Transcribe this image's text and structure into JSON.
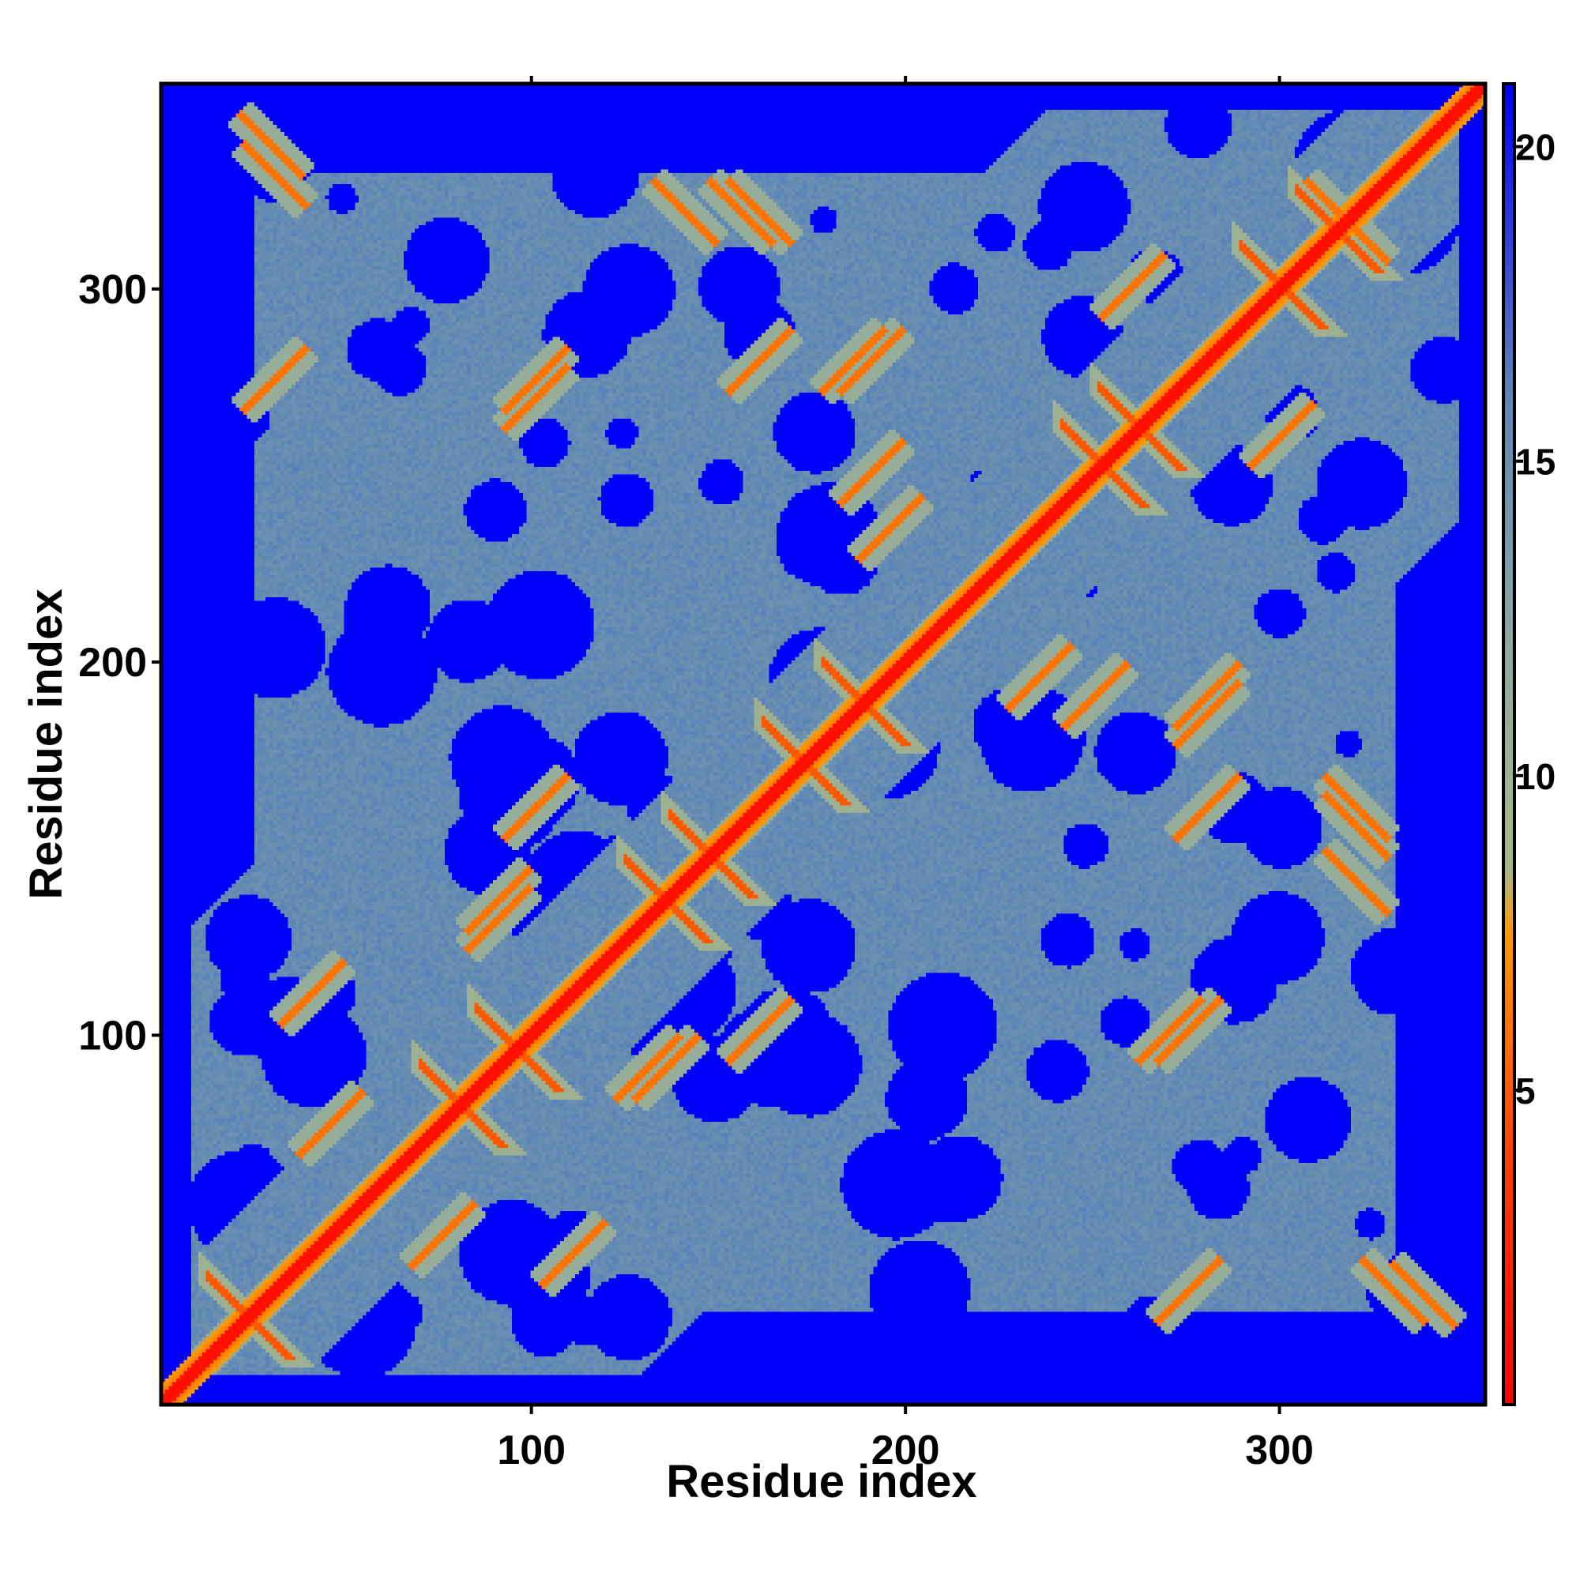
{
  "chart_data": {
    "type": "heatmap",
    "title": "",
    "xlabel": "Residue index",
    "ylabel": "Residue index",
    "xlim": [
      1,
      355
    ],
    "ylim": [
      1,
      355
    ],
    "x_ticks": [
      100,
      200,
      300
    ],
    "y_ticks": [
      100,
      200,
      300
    ],
    "colorbar": {
      "ticks": [
        5,
        10,
        15,
        20
      ],
      "range": [
        0,
        21
      ],
      "stops": [
        {
          "value": 0,
          "color": "#ff0000"
        },
        {
          "value": 4,
          "color": "#ff4000"
        },
        {
          "value": 7.5,
          "color": "#ff9900"
        },
        {
          "value": 8.5,
          "color": "#a8b888"
        },
        {
          "value": 12,
          "color": "#8fa8a0"
        },
        {
          "value": 16,
          "color": "#5f87b5"
        },
        {
          "value": 21,
          "color": "#0000ff"
        }
      ]
    },
    "value_meaning": "pairwise residue distance",
    "colors": {
      "near": "#ff0000",
      "contact": "#ff9900",
      "halo": "#a8b888",
      "mid": "#5b88b8",
      "far": "#0000ff"
    },
    "helix_crossings": [
      23,
      80,
      95,
      135,
      147,
      172,
      188,
      252,
      262,
      300,
      315
    ],
    "off_diagonal_contacts": [
      {
        "x": 29,
        "y": 338,
        "angle": "anti"
      },
      {
        "x": 155,
        "y": 320,
        "angle": "anti"
      },
      {
        "x": 315,
        "y": 320,
        "angle": "anti"
      },
      {
        "x": 320,
        "y": 160,
        "angle": "anti"
      },
      {
        "x": 330,
        "y": 30,
        "angle": "anti"
      },
      {
        "x": 140,
        "y": 320,
        "angle": "anti"
      },
      {
        "x": 160,
        "y": 280,
        "angle": "par"
      },
      {
        "x": 185,
        "y": 280,
        "angle": "par"
      },
      {
        "x": 100,
        "y": 270,
        "angle": "par"
      },
      {
        "x": 90,
        "y": 135,
        "angle": "par"
      },
      {
        "x": 130,
        "y": 90,
        "angle": "par"
      },
      {
        "x": 75,
        "y": 45,
        "angle": "par"
      },
      {
        "x": 40,
        "y": 110,
        "angle": "par"
      },
      {
        "x": 280,
        "y": 190,
        "angle": "par"
      },
      {
        "x": 275,
        "y": 100,
        "angle": "par"
      },
      {
        "x": 275,
        "y": 30,
        "angle": "par"
      },
      {
        "x": 235,
        "y": 195,
        "angle": "par"
      },
      {
        "x": 190,
        "y": 250,
        "angle": "par"
      },
      {
        "x": 300,
        "y": 260,
        "angle": "par"
      },
      {
        "x": 160,
        "y": 100,
        "angle": "par"
      }
    ]
  }
}
